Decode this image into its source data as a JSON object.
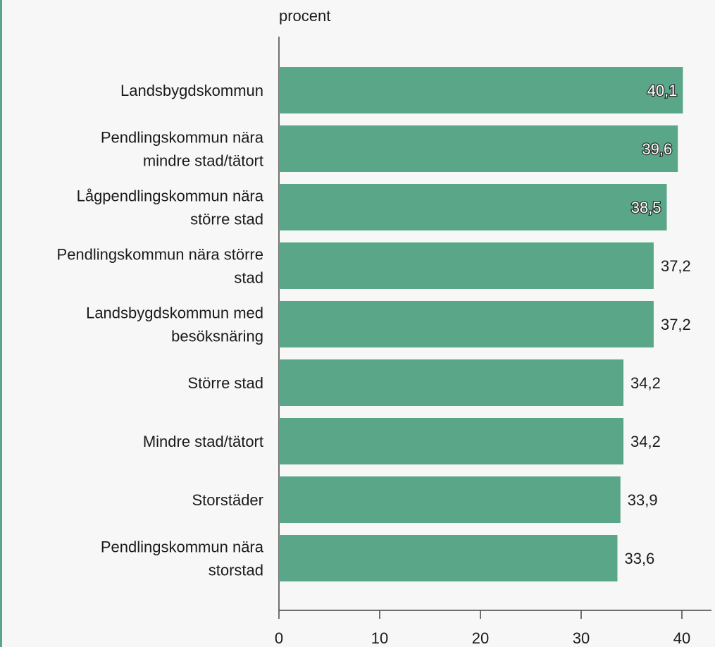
{
  "chart_data": {
    "type": "bar",
    "orientation": "horizontal",
    "unit_label": "procent",
    "categories": [
      [
        "Landsbygdskommun"
      ],
      [
        "Pendlingskommun nära",
        "mindre stad/tätort"
      ],
      [
        "Lågpendlingskommun nära",
        "större stad"
      ],
      [
        "Pendlingskommun nära större",
        "stad"
      ],
      [
        "Landsbygdskommun med",
        "besöksnäring"
      ],
      [
        "Större stad"
      ],
      [
        "Mindre stad/tätort"
      ],
      [
        "Storstäder"
      ],
      [
        "Pendlingskommun nära",
        "storstad"
      ]
    ],
    "values": [
      40.1,
      39.6,
      38.5,
      37.2,
      37.2,
      34.2,
      34.2,
      33.9,
      33.6
    ],
    "value_labels": [
      "40,1",
      "39,6",
      "38,5",
      "37,2",
      "37,2",
      "34,2",
      "34,2",
      "33,9",
      "33,6"
    ],
    "xticks": [
      0,
      10,
      20,
      30,
      40
    ],
    "xlim": [
      0,
      42
    ],
    "bar_color": "#5aa688",
    "grid": false
  }
}
